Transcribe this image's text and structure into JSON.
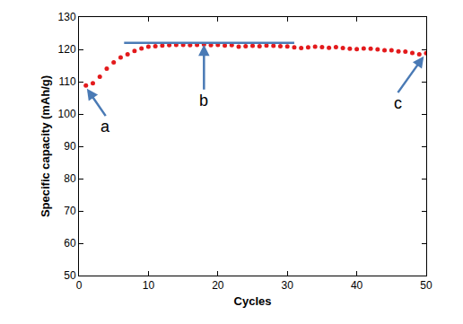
{
  "chart_data": {
    "type": "scatter",
    "x_label": "Cycles",
    "y_label": "Specific capacity (mAh/g)",
    "x": [
      1,
      2,
      3,
      4,
      5,
      6,
      7,
      8,
      9,
      10,
      11,
      12,
      13,
      14,
      15,
      16,
      17,
      18,
      19,
      20,
      21,
      22,
      23,
      24,
      25,
      26,
      27,
      28,
      29,
      30,
      31,
      32,
      33,
      34,
      35,
      36,
      37,
      38,
      39,
      40,
      41,
      42,
      43,
      44,
      45,
      46,
      47,
      48,
      49,
      50
    ],
    "series": [
      {
        "color": "#e31a1c",
        "marker": "circle",
        "values": [
          108.8,
          109.5,
          111.5,
          114,
          116,
          117.5,
          118.5,
          119.5,
          120.3,
          120.8,
          121,
          121.2,
          121.3,
          121.4,
          121.4,
          121.3,
          121.4,
          121.5,
          121.3,
          121.4,
          121.2,
          121.3,
          120.8,
          121,
          121.1,
          121,
          121.2,
          121.1,
          121,
          120.9,
          120.6,
          120.4,
          120.6,
          120.8,
          120.7,
          120.5,
          120.7,
          120.4,
          120.2,
          120.1,
          120.3,
          120.2,
          120,
          119.7,
          119.7,
          119.4,
          119.3,
          118.9,
          118.5,
          118.8
        ]
      }
    ],
    "xlim": [
      0,
      50
    ],
    "xticks": [
      0,
      10,
      20,
      30,
      40,
      50
    ],
    "ylim": [
      50,
      130
    ],
    "yticks": [
      50,
      60,
      70,
      80,
      90,
      100,
      110,
      120,
      130
    ],
    "grid": false,
    "annotations": [
      {
        "text": "a",
        "x": 1,
        "y": 108.3
      },
      {
        "text": "b",
        "x": 18,
        "y": 122,
        "span": [
          6.5,
          31
        ]
      },
      {
        "text": "c",
        "x": 49.8,
        "y": 118.3
      }
    ]
  }
}
